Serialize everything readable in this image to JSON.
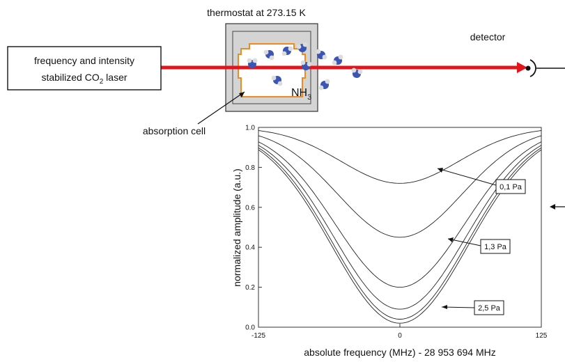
{
  "setup": {
    "thermostat_label": "thermostat at 273.15 K",
    "laser_label_line1": "frequency and intensity",
    "laser_label_line2_pre": "stabilized CO",
    "laser_label_line2_sub": "2",
    "laser_label_line2_post": " laser",
    "detector_label": "detector",
    "absorption_cell_label": "absorption cell",
    "gas_label_main": "NH",
    "gas_label_sub": "3",
    "colors": {
      "beam": "#e3141b",
      "cell_outline": "#f0891e",
      "thermostat_fill": "#d4d4d4",
      "molecule_n": "#3b55b5",
      "molecule_h": "#dcdcdc"
    }
  },
  "chart_data": {
    "type": "line",
    "xlabel": "absolute frequency (MHz) - 28 953 694 MHz",
    "ylabel": "normalized amplitude (a.u.)",
    "xlim": [
      -125,
      125
    ],
    "ylim": [
      0,
      1.0
    ],
    "x_ticks": [
      "-125",
      "0",
      "125"
    ],
    "y_ticks": [
      "0.0",
      "0.2",
      "0.4",
      "0.6",
      "0.8",
      "1.0"
    ],
    "annotations": [
      "0,1 Pa",
      "1,3 Pa",
      "2,5 Pa"
    ],
    "series": [
      {
        "min": 0.72,
        "width": 52
      },
      {
        "min": 0.45,
        "width": 55
      },
      {
        "min": 0.2,
        "width": 57
      },
      {
        "min": 0.09,
        "width": 58
      },
      {
        "min": 0.04,
        "width": 59
      },
      {
        "min": 0.02,
        "width": 60
      }
    ],
    "grid": false
  }
}
